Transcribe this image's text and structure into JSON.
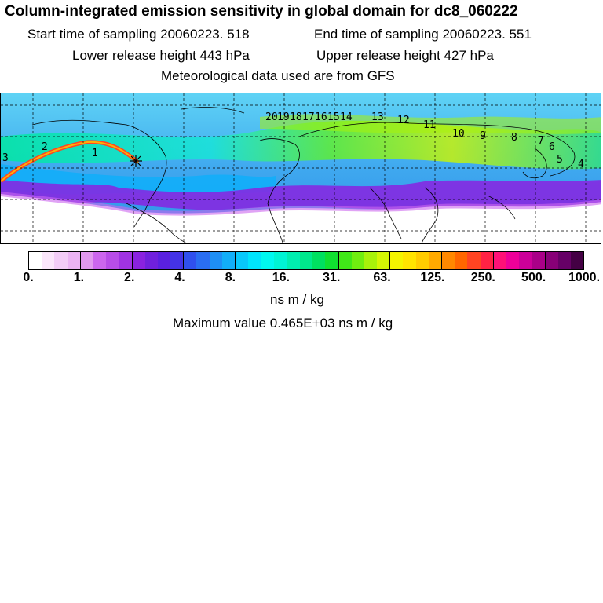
{
  "header": {
    "title": "Column-integrated emission sensitivity in global domain for dc8_060222",
    "start_time": "Start time of sampling 20060223.   518",
    "end_time": "End time of sampling 20060223.   551",
    "lower_height": "Lower release height  443 hPa",
    "upper_height": "Upper release height  427 hPa",
    "met_data": "Meteorological data used are from GFS"
  },
  "map": {
    "trajectory_labels": [
      "3",
      "2",
      "1",
      "20",
      "19",
      "18",
      "17",
      "16",
      "15",
      "14",
      "13",
      "12",
      "11",
      "10",
      "9",
      "8",
      "7",
      "6",
      "5",
      "4"
    ],
    "marker": "release-point-star"
  },
  "colorbar": {
    "colors": [
      "#ffffff",
      "#fbe6fb",
      "#f3ccf7",
      "#ebb3f3",
      "#e199ef",
      "#cc66ee",
      "#b84de8",
      "#a033e3",
      "#8a22e0",
      "#7020dd",
      "#5a20e0",
      "#4433e6",
      "#3050ee",
      "#2a6ef2",
      "#1e8ff5",
      "#12aef8",
      "#08c8fb",
      "#00e4fc",
      "#00f8f0",
      "#00f4d4",
      "#00eeb0",
      "#00e88c",
      "#00e060",
      "#10e030",
      "#40e818",
      "#70ee10",
      "#a8f20a",
      "#d4f604",
      "#f4f400",
      "#ffe400",
      "#ffcc00",
      "#ffaa00",
      "#ff8800",
      "#ff6600",
      "#ff4422",
      "#ff2244",
      "#ff1177",
      "#ee0099",
      "#cc0099",
      "#aa0088",
      "#880077",
      "#660066",
      "#440044"
    ],
    "tick_labels": [
      "0.",
      "1.",
      "2.",
      "4.",
      "8.",
      "16.",
      "31.",
      "63.",
      "125.",
      "250.",
      "500.",
      "1000."
    ],
    "units": "ns m / kg"
  },
  "footer": {
    "max_value": "Maximum value  0.465E+03 ns m / kg"
  }
}
